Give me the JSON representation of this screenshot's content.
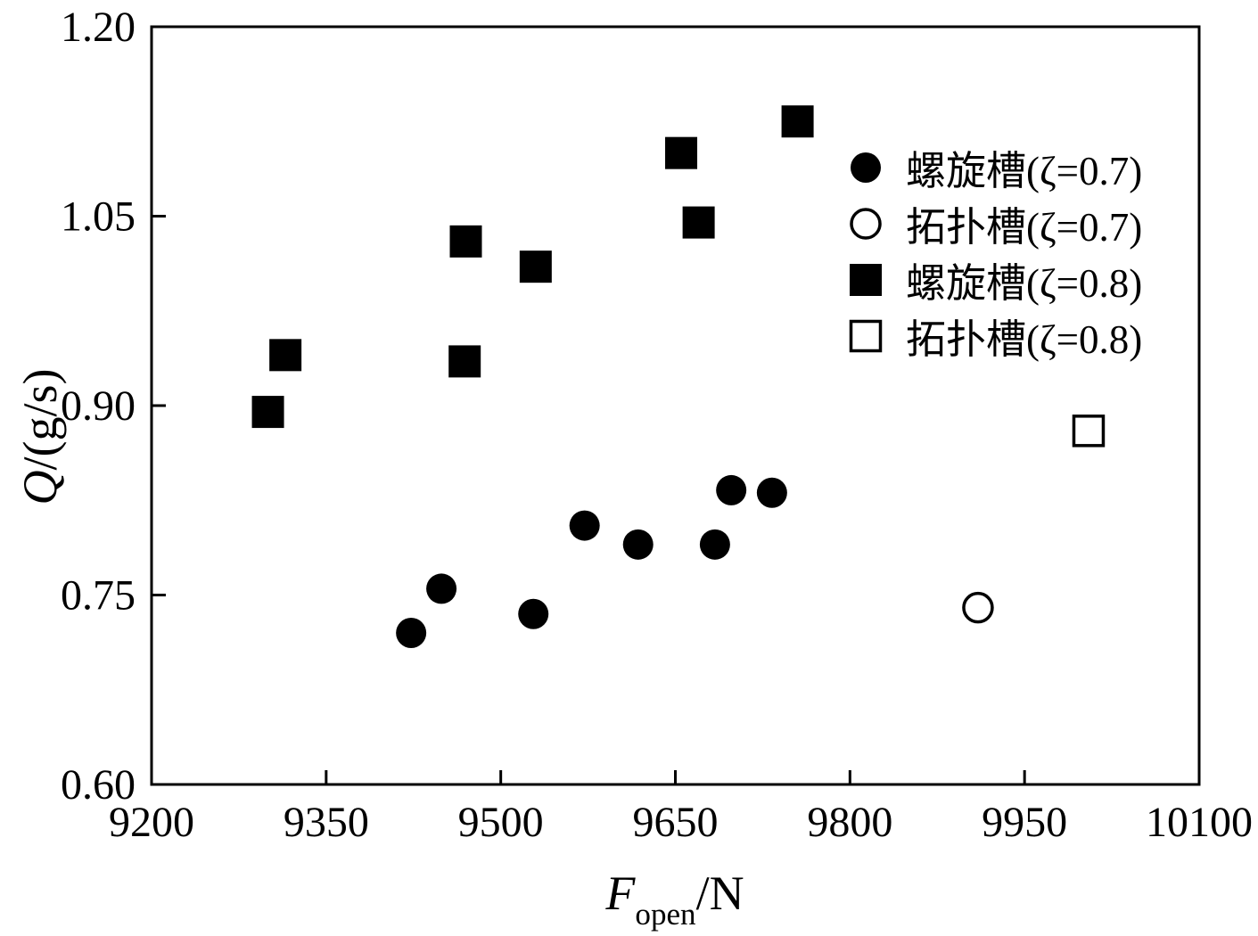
{
  "chart_data": {
    "type": "scatter",
    "title": "",
    "xlabel": "F_open/N",
    "ylabel": "Q/(g/s)",
    "xlabel_parts": {
      "italic": "F",
      "sub": "open",
      "rest": "/N"
    },
    "ylabel_parts": {
      "italic": "Q",
      "rest": "/(g/s)"
    },
    "xlim": [
      9200,
      10100
    ],
    "ylim": [
      0.6,
      1.2
    ],
    "x_ticks": [
      9200,
      9350,
      9500,
      9650,
      9800,
      9950,
      10100
    ],
    "x_tick_labels": [
      "9200",
      "9350",
      "9500",
      "9650",
      "9800",
      "9950",
      "10100"
    ],
    "y_ticks": [
      0.6,
      0.75,
      0.9,
      1.05,
      1.2
    ],
    "y_tick_labels": [
      "0.60",
      "0.75",
      "0.90",
      "1.05",
      "1.20"
    ],
    "grid": false,
    "legend_position": "upper right",
    "series": [
      {
        "name": "螺旋槽(ζ=0.7)",
        "marker": "circle-filled",
        "points": [
          [
            9423,
            0.72
          ],
          [
            9449,
            0.755
          ],
          [
            9528,
            0.735
          ],
          [
            9572,
            0.805
          ],
          [
            9618,
            0.79
          ],
          [
            9684,
            0.79
          ],
          [
            9698,
            0.833
          ],
          [
            9733,
            0.831
          ]
        ]
      },
      {
        "name": "拓扑槽(ζ=0.7)",
        "marker": "circle-open",
        "points": [
          [
            9910,
            0.74
          ]
        ]
      },
      {
        "name": "螺旋槽(ζ=0.8)",
        "marker": "square-filled",
        "points": [
          [
            9300,
            0.895
          ],
          [
            9315,
            0.94
          ],
          [
            9469,
            0.935
          ],
          [
            9470,
            1.03
          ],
          [
            9530,
            1.01
          ],
          [
            9655,
            1.1
          ],
          [
            9670,
            1.045
          ],
          [
            9755,
            1.125
          ]
        ]
      },
      {
        "name": "拓扑槽(ζ=0.8)",
        "marker": "square-open",
        "points": [
          [
            10005,
            0.88
          ]
        ]
      }
    ],
    "colors": {
      "marker_fill": "#000000",
      "marker_stroke": "#000000",
      "axis": "#000000",
      "background": "#ffffff"
    }
  }
}
